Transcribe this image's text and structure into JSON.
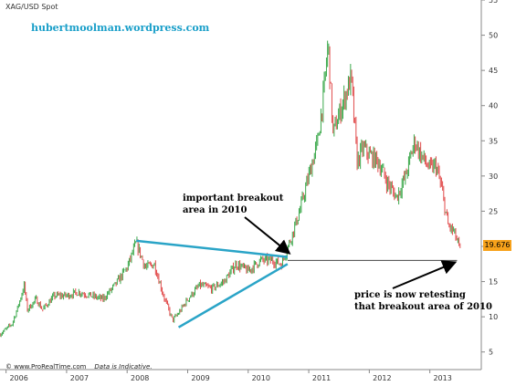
{
  "chart_data": {
    "type": "line",
    "title": "XAG/USD Spot",
    "subtitle": "hubertmoolman.wordpress.com",
    "xlabel": "",
    "ylabel": "",
    "x_ticks": [
      "2006",
      "2007",
      "2008",
      "2009",
      "2010",
      "2011",
      "2012",
      "2013"
    ],
    "y_ticks": [
      5,
      10,
      15,
      20,
      25,
      30,
      35,
      40,
      45,
      50,
      55
    ],
    "xlim": [
      2005.9,
      2013.85
    ],
    "ylim": [
      2.5,
      55
    ],
    "grid": false,
    "last_price": "19.676",
    "series": [
      {
        "x": [
          2005.9,
          2006.1,
          2006.2,
          2006.3,
          2006.35,
          2006.5,
          2006.6,
          2006.8,
          2007.0,
          2007.2,
          2007.4,
          2007.6,
          2007.8,
          2008.0,
          2008.15,
          2008.3,
          2008.45,
          2008.6,
          2008.75,
          2008.85,
          2009.0,
          2009.2,
          2009.4,
          2009.6,
          2009.8,
          2010.0,
          2010.2,
          2010.4,
          2010.55,
          2010.7,
          2010.85,
          2011.0,
          2011.15,
          2011.25,
          2011.32,
          2011.4,
          2011.55,
          2011.7,
          2011.8,
          2011.9,
          2012.0,
          2012.15,
          2012.3,
          2012.45,
          2012.6,
          2012.75,
          2012.85,
          2013.0,
          2013.1,
          2013.2,
          2013.3,
          2013.4,
          2013.5
        ],
        "y": [
          7.5,
          9.0,
          11.5,
          14.5,
          11.0,
          12.5,
          11.0,
          13.0,
          13.0,
          13.5,
          13.0,
          12.5,
          14.5,
          17.0,
          20.5,
          17.0,
          17.5,
          13.0,
          9.5,
          10.5,
          12.5,
          14.5,
          14.0,
          15.0,
          17.5,
          16.5,
          18.0,
          18.0,
          17.5,
          21.0,
          25.0,
          30.0,
          35.0,
          42.0,
          49.0,
          36.0,
          40.0,
          44.0,
          32.0,
          34.0,
          33.0,
          32.0,
          29.0,
          27.0,
          30.0,
          35.0,
          33.0,
          31.0,
          31.5,
          28.0,
          23.0,
          22.0,
          19.5
        ]
      }
    ],
    "trendlines": [
      {
        "from": [
          2008.15,
          20.8
        ],
        "to": [
          2010.65,
          18.5
        ]
      },
      {
        "from": [
          2008.85,
          8.5
        ],
        "to": [
          2010.65,
          17.5
        ]
      }
    ],
    "horizontal_line": {
      "y": 18.0,
      "from_x": 2010.65,
      "to_x": 2013.45
    },
    "colors": {
      "up": "#3aa84a",
      "down": "#e14b4b",
      "trendline": "#2aa4c7",
      "badge": "#f7a21b",
      "blog_text": "#1a9fc9"
    },
    "annotations": [
      {
        "line1": "important breakout",
        "line2": "area in 2010"
      },
      {
        "line1": "price is now retesting",
        "line2": "that breakout area of 2010"
      }
    ],
    "footer": {
      "site": "© www.ProRealTime.com",
      "note": "Data is Indicative."
    }
  }
}
